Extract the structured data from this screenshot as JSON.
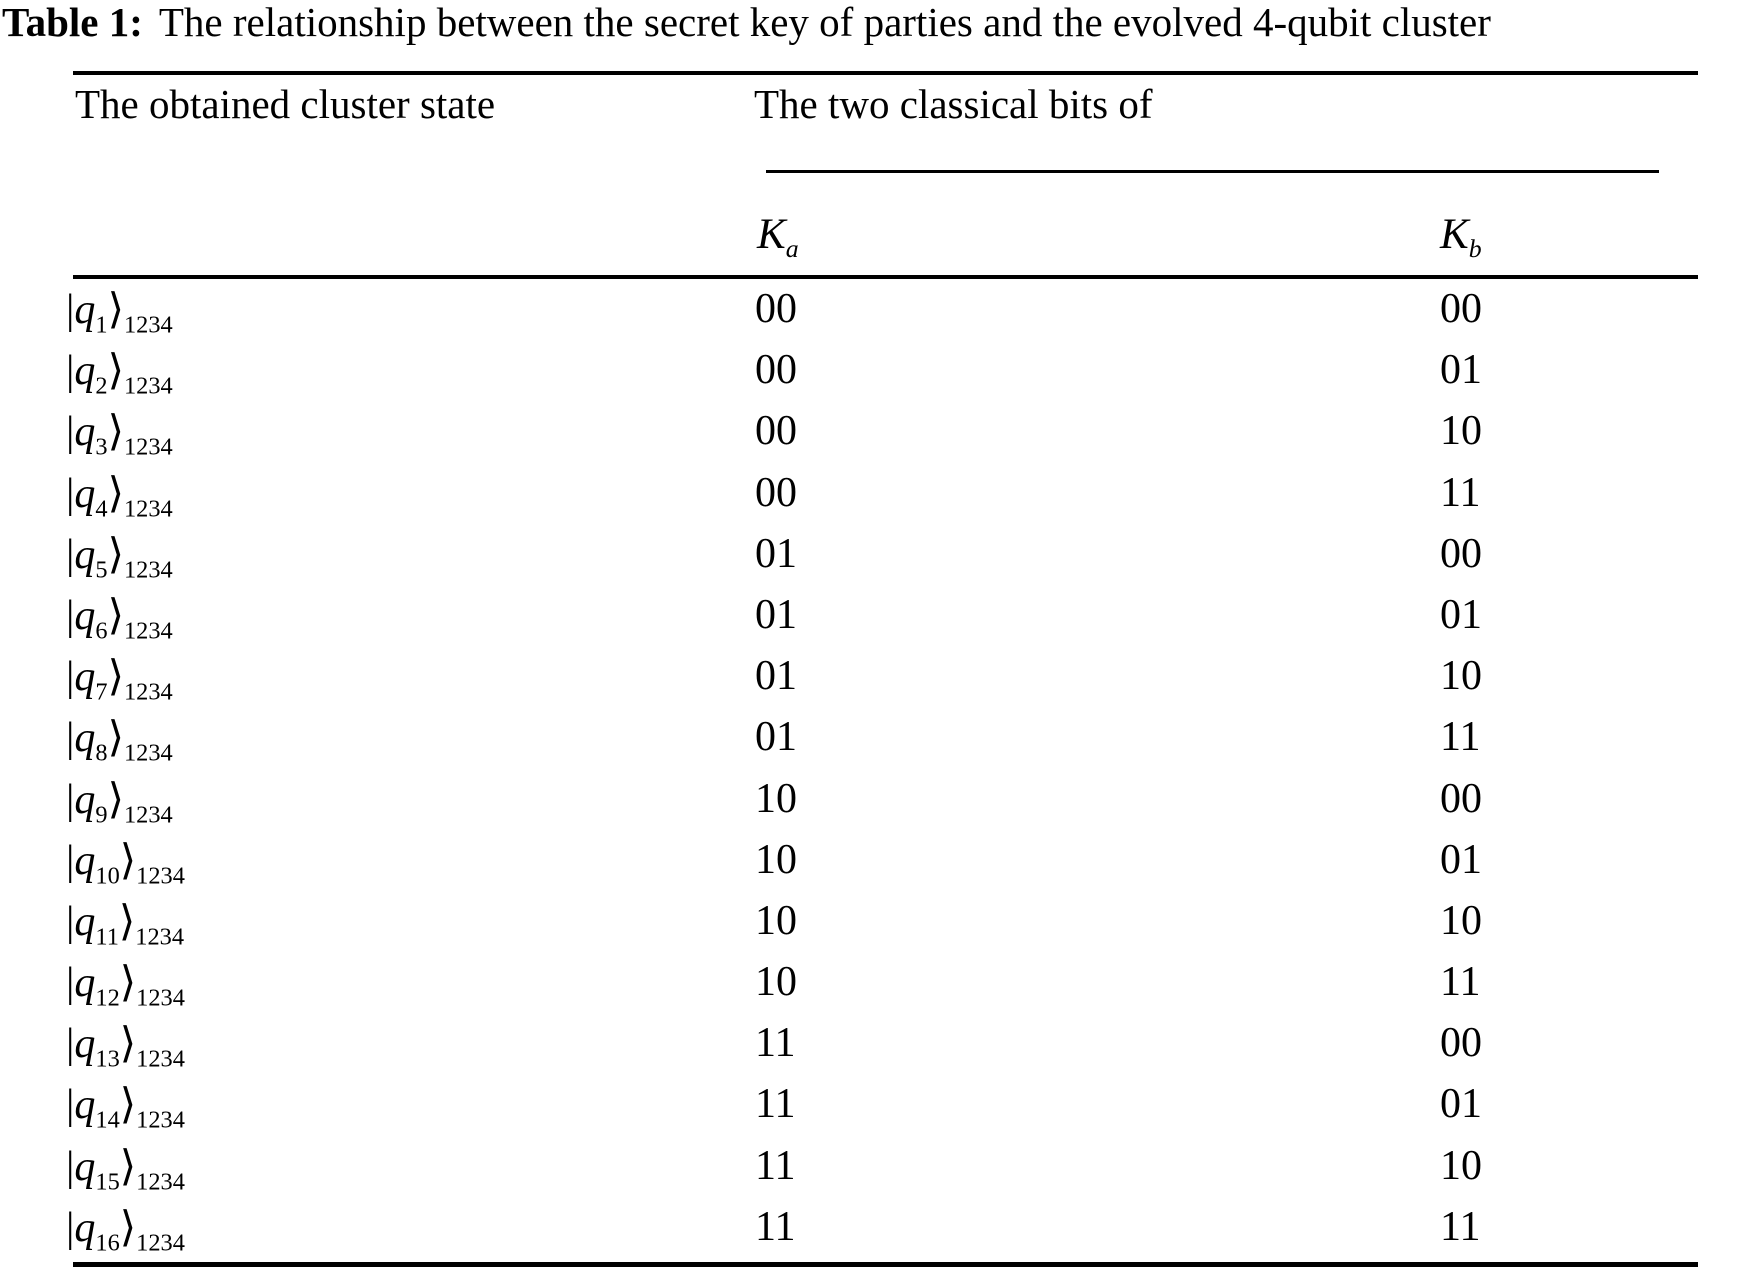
{
  "caption": {
    "label": "Table 1:",
    "text": "The relationship between the secret key of parties and the evolved 4-qubit cluster"
  },
  "table": {
    "header": {
      "state_column": "The obtained cluster state",
      "bits_group": "The two classical bits of",
      "ka": {
        "symbol": "K",
        "sub": "a"
      },
      "kb": {
        "symbol": "K",
        "sub": "b"
      }
    },
    "ket": {
      "bar": "|",
      "symbol": "q",
      "rangle": "⟩",
      "qubits": "1234"
    },
    "rows": [
      {
        "index": "1",
        "ka": "00",
        "kb": "00"
      },
      {
        "index": "2",
        "ka": "00",
        "kb": "01"
      },
      {
        "index": "3",
        "ka": "00",
        "kb": "10"
      },
      {
        "index": "4",
        "ka": "00",
        "kb": "11"
      },
      {
        "index": "5",
        "ka": "01",
        "kb": "00"
      },
      {
        "index": "6",
        "ka": "01",
        "kb": "01"
      },
      {
        "index": "7",
        "ka": "01",
        "kb": "10"
      },
      {
        "index": "8",
        "ka": "01",
        "kb": "11"
      },
      {
        "index": "9",
        "ka": "10",
        "kb": "00"
      },
      {
        "index": "10",
        "ka": "10",
        "kb": "01"
      },
      {
        "index": "11",
        "ka": "10",
        "kb": "10"
      },
      {
        "index": "12",
        "ka": "10",
        "kb": "11"
      },
      {
        "index": "13",
        "ka": "11",
        "kb": "00"
      },
      {
        "index": "14",
        "ka": "11",
        "kb": "01"
      },
      {
        "index": "15",
        "ka": "11",
        "kb": "10"
      },
      {
        "index": "16",
        "ka": "11",
        "kb": "11"
      }
    ]
  },
  "colors": {
    "text": "#000000",
    "background": "#ffffff",
    "rule": "#000000"
  }
}
